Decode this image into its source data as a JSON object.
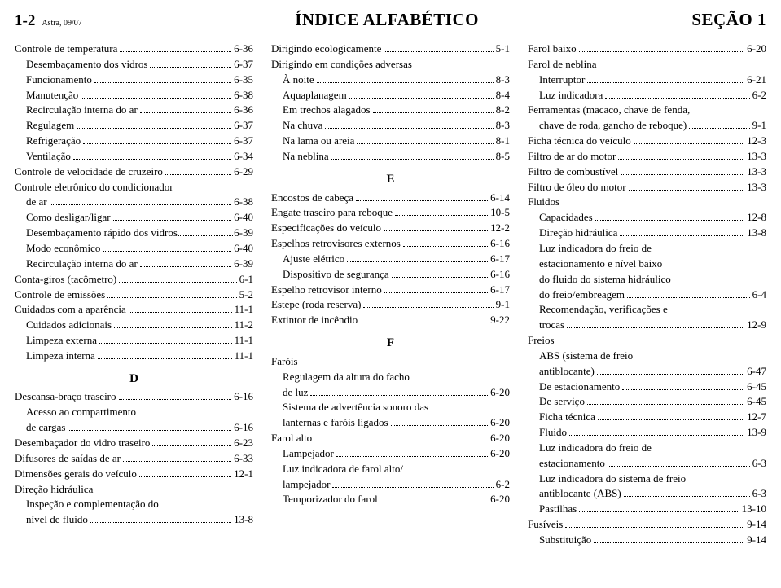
{
  "header": {
    "page_num": "1-2",
    "sub": "Astra, 09/07",
    "title": "ÍNDICE ALFABÉTICO",
    "section": "SEÇÃO 1"
  },
  "col1": [
    {
      "label": "Controle de temperatura",
      "ref": "6-36",
      "indent": 0
    },
    {
      "label": "Desembaçamento dos vidros",
      "ref": "6-37",
      "indent": 1
    },
    {
      "label": "Funcionamento",
      "ref": "6-35",
      "indent": 1
    },
    {
      "label": "Manutenção",
      "ref": "6-38",
      "indent": 1
    },
    {
      "label": "Recirculação interna do ar",
      "ref": "6-36",
      "indent": 1
    },
    {
      "label": "Regulagem",
      "ref": "6-37",
      "indent": 1
    },
    {
      "label": "Refrigeração",
      "ref": "6-37",
      "indent": 1
    },
    {
      "label": "Ventilação",
      "ref": "6-34",
      "indent": 1
    },
    {
      "label": "Controle de velocidade de cruzeiro",
      "ref": "6-29",
      "indent": 0
    },
    {
      "label": "Controle eletrônico do condicionador",
      "ref": "",
      "indent": 0,
      "noref": true
    },
    {
      "label": "de ar",
      "ref": "6-38",
      "indent": 1
    },
    {
      "label": "Como desligar/ligar",
      "ref": "6-40",
      "indent": 1
    },
    {
      "label": "Desembaçamento rápido dos vidros",
      "ref": "6-39",
      "indent": 1,
      "tight": true
    },
    {
      "label": "Modo econômico",
      "ref": "6-40",
      "indent": 1
    },
    {
      "label": "Recirculação interna do ar",
      "ref": "6-39",
      "indent": 1
    },
    {
      "label": "Conta-giros (tacômetro)",
      "ref": "6-1",
      "indent": 0
    },
    {
      "label": "Controle de emissões",
      "ref": "5-2",
      "indent": 0
    },
    {
      "label": "Cuidados com a aparência",
      "ref": "11-1",
      "indent": 0
    },
    {
      "label": "Cuidados adicionais",
      "ref": "11-2",
      "indent": 1
    },
    {
      "label": "Limpeza externa",
      "ref": "11-1",
      "indent": 1
    },
    {
      "label": "Limpeza interna",
      "ref": "11-1",
      "indent": 1
    },
    {
      "letter": "D"
    },
    {
      "label": "Descansa-braço traseiro",
      "ref": "6-16",
      "indent": 0
    },
    {
      "label": "Acesso ao compartimento",
      "ref": "",
      "indent": 1,
      "noref": true
    },
    {
      "label": "de cargas",
      "ref": "6-16",
      "indent": 1
    },
    {
      "label": "Desembaçador do vidro traseiro",
      "ref": "6-23",
      "indent": 0
    },
    {
      "label": "Difusores de saídas de ar",
      "ref": "6-33",
      "indent": 0
    },
    {
      "label": "Dimensões gerais do veículo",
      "ref": "12-1",
      "indent": 0
    },
    {
      "label": "Direção hidráulica",
      "ref": "",
      "indent": 0,
      "noref": true
    },
    {
      "label": "Inspeção e complementação do",
      "ref": "",
      "indent": 1,
      "noref": true
    },
    {
      "label": "nível de fluido",
      "ref": "13-8",
      "indent": 1
    }
  ],
  "col2": [
    {
      "label": "Dirigindo ecologicamente",
      "ref": "5-1",
      "indent": 0
    },
    {
      "label": "Dirigindo em condições adversas",
      "ref": "",
      "indent": 0,
      "noref": true
    },
    {
      "label": "À noite",
      "ref": "8-3",
      "indent": 1
    },
    {
      "label": "Aquaplanagem",
      "ref": "8-4",
      "indent": 1
    },
    {
      "label": "Em trechos alagados",
      "ref": "8-2",
      "indent": 1
    },
    {
      "label": "Na chuva",
      "ref": "8-3",
      "indent": 1
    },
    {
      "label": "Na lama ou areia",
      "ref": "8-1",
      "indent": 1
    },
    {
      "label": "Na neblina",
      "ref": "8-5",
      "indent": 1
    },
    {
      "letter": "E"
    },
    {
      "label": "Encostos de cabeça",
      "ref": "6-14",
      "indent": 0
    },
    {
      "label": "Engate traseiro para reboque",
      "ref": "10-5",
      "indent": 0
    },
    {
      "label": "Especificações do veículo",
      "ref": "12-2",
      "indent": 0
    },
    {
      "label": "Espelhos retrovisores externos",
      "ref": "6-16",
      "indent": 0
    },
    {
      "label": "Ajuste elétrico",
      "ref": "6-17",
      "indent": 1
    },
    {
      "label": "Dispositivo de segurança",
      "ref": "6-16",
      "indent": 1
    },
    {
      "label": "Espelho retrovisor interno",
      "ref": "6-17",
      "indent": 0
    },
    {
      "label": "Estepe (roda reserva)",
      "ref": "9-1",
      "indent": 0
    },
    {
      "label": "Extintor de incêndio",
      "ref": "9-22",
      "indent": 0
    },
    {
      "letter": "F"
    },
    {
      "label": "Faróis",
      "ref": "",
      "indent": 0,
      "noref": true
    },
    {
      "label": "Regulagem da altura do facho",
      "ref": "",
      "indent": 1,
      "noref": true
    },
    {
      "label": "de luz",
      "ref": "6-20",
      "indent": 1
    },
    {
      "label": "Sistema de advertência sonoro das",
      "ref": "",
      "indent": 1,
      "noref": true
    },
    {
      "label": "lanternas e faróis ligados",
      "ref": "6-20",
      "indent": 1
    },
    {
      "label": "Farol alto",
      "ref": "6-20",
      "indent": 0
    },
    {
      "label": "Lampejador",
      "ref": "6-20",
      "indent": 1
    },
    {
      "label": "Luz indicadora de farol alto/",
      "ref": "",
      "indent": 1,
      "noref": true
    },
    {
      "label": "lampejador",
      "ref": "6-2",
      "indent": 1
    },
    {
      "label": "Temporizador do farol",
      "ref": "6-20",
      "indent": 1
    }
  ],
  "col3": [
    {
      "label": "Farol baixo",
      "ref": "6-20",
      "indent": 0
    },
    {
      "label": "Farol de neblina",
      "ref": "",
      "indent": 0,
      "noref": true
    },
    {
      "label": "Interruptor",
      "ref": "6-21",
      "indent": 1
    },
    {
      "label": "Luz indicadora",
      "ref": "6-2",
      "indent": 1
    },
    {
      "label": "Ferramentas (macaco, chave de fenda,",
      "ref": "",
      "indent": 0,
      "noref": true
    },
    {
      "label": "chave de roda, gancho de reboque)",
      "ref": "9-1",
      "indent": 1
    },
    {
      "label": "Ficha técnica do veículo",
      "ref": "12-3",
      "indent": 0
    },
    {
      "label": "Filtro de ar do motor",
      "ref": "13-3",
      "indent": 0
    },
    {
      "label": "Filtro de combustível",
      "ref": "13-3",
      "indent": 0
    },
    {
      "label": "Filtro de óleo do motor",
      "ref": "13-3",
      "indent": 0
    },
    {
      "label": "Fluidos",
      "ref": "",
      "indent": 0,
      "noref": true
    },
    {
      "label": "Capacidades",
      "ref": "12-8",
      "indent": 1
    },
    {
      "label": "Direção hidráulica",
      "ref": "13-8",
      "indent": 1
    },
    {
      "label": "Luz indicadora do freio de",
      "ref": "",
      "indent": 1,
      "noref": true
    },
    {
      "label": "estacionamento e nível baixo",
      "ref": "",
      "indent": 1,
      "noref": true
    },
    {
      "label": "do fluido do sistema hidráulico",
      "ref": "",
      "indent": 1,
      "noref": true
    },
    {
      "label": "do freio/embreagem",
      "ref": "6-4",
      "indent": 1
    },
    {
      "label": "Recomendação, verificações e",
      "ref": "",
      "indent": 1,
      "noref": true
    },
    {
      "label": "trocas",
      "ref": "12-9",
      "indent": 1
    },
    {
      "label": "Freios",
      "ref": "",
      "indent": 0,
      "noref": true
    },
    {
      "label": "ABS (sistema de freio",
      "ref": "",
      "indent": 1,
      "noref": true
    },
    {
      "label": "antiblocante)",
      "ref": "6-47",
      "indent": 1
    },
    {
      "label": "De estacionamento",
      "ref": "6-45",
      "indent": 1
    },
    {
      "label": "De serviço",
      "ref": "6-45",
      "indent": 1
    },
    {
      "label": "Ficha técnica",
      "ref": "12-7",
      "indent": 1
    },
    {
      "label": "Fluido",
      "ref": "13-9",
      "indent": 1
    },
    {
      "label": "Luz indicadora do freio de",
      "ref": "",
      "indent": 1,
      "noref": true
    },
    {
      "label": "estacionamento",
      "ref": "6-3",
      "indent": 1
    },
    {
      "label": "Luz indicadora do sistema de freio",
      "ref": "",
      "indent": 1,
      "noref": true
    },
    {
      "label": "antiblocante (ABS)",
      "ref": "6-3",
      "indent": 1
    },
    {
      "label": "Pastilhas",
      "ref": "13-10",
      "indent": 1
    },
    {
      "label": "Fusíveis",
      "ref": "9-14",
      "indent": 0
    },
    {
      "label": "Substituição",
      "ref": "9-14",
      "indent": 1
    }
  ]
}
